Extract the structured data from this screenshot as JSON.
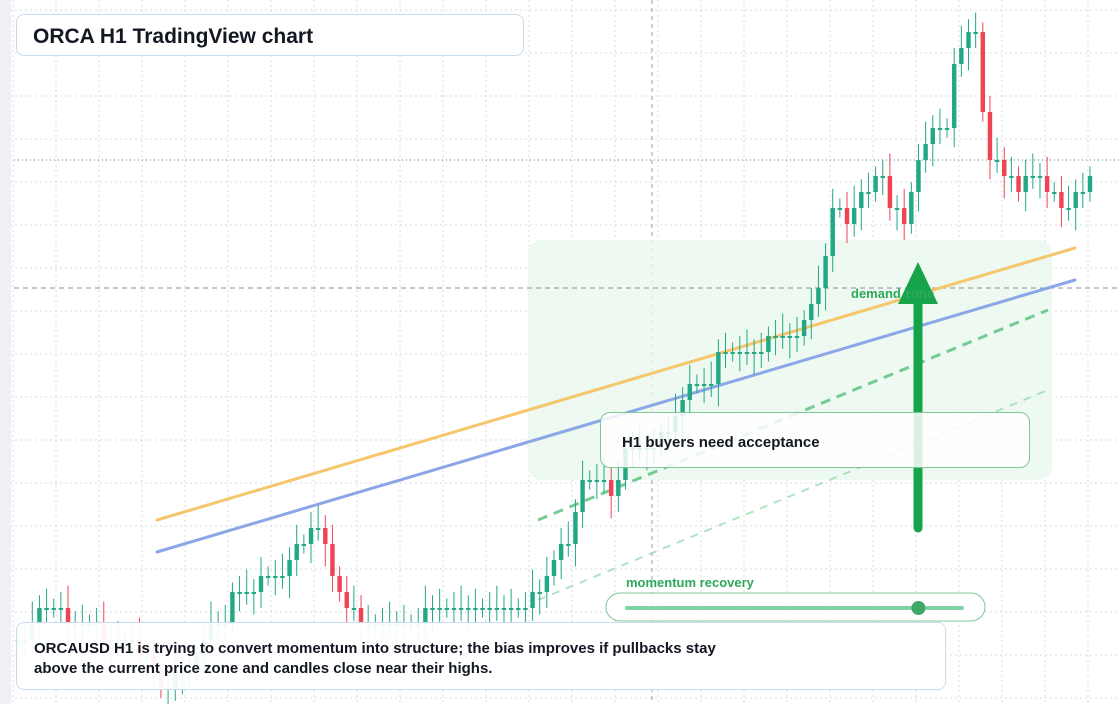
{
  "title": "ORCA H1 TradingView chart",
  "note": "H1 buyers need acceptance",
  "caption": {
    "line1": "ORCAUSD H1 is trying to convert momentum into structure; the bias improves if pullbacks stay",
    "line2": "above the current price zone and candles close near their highs."
  },
  "labels": {
    "demand": "demand zone",
    "momentum": "momentum recovery"
  },
  "momentum_slider": {
    "value": 0.87
  },
  "colors": {
    "up": "#22a884",
    "down": "#ef4453",
    "grid": "#d7dce2",
    "ma_fast": "#f5c66b",
    "ma_slow": "#8ba7e8",
    "accent_green": "#16a34a",
    "zone_fill": "#eaf8ee"
  },
  "chart_data": {
    "type": "candlestick",
    "symbol": "ORCAUSD",
    "timeframe": "H1",
    "close_values": [
      0.5,
      0.5,
      0.51,
      0.52,
      0.52,
      0.52,
      0.52,
      0.51,
      0.51,
      0.51,
      0.51,
      0.51,
      0.5,
      0.5,
      0.5,
      0.5,
      0.5,
      0.49,
      0.49,
      0.48,
      0.47,
      0.47,
      0.48,
      0.48,
      0.48,
      0.49,
      0.5,
      0.51,
      0.51,
      0.51,
      0.53,
      0.53,
      0.53,
      0.53,
      0.54,
      0.54,
      0.54,
      0.54,
      0.55,
      0.56,
      0.56,
      0.57,
      0.57,
      0.56,
      0.54,
      0.53,
      0.52,
      0.52,
      0.51,
      0.51,
      0.51,
      0.51,
      0.51,
      0.51,
      0.51,
      0.51,
      0.51,
      0.52,
      0.52,
      0.52,
      0.52,
      0.52,
      0.52,
      0.52,
      0.52,
      0.52,
      0.52,
      0.52,
      0.52,
      0.52,
      0.52,
      0.52,
      0.53,
      0.53,
      0.54,
      0.55,
      0.56,
      0.56,
      0.58,
      0.6,
      0.6,
      0.6,
      0.6,
      0.59,
      0.6,
      0.62,
      0.62,
      0.62,
      0.62,
      0.62,
      0.63,
      0.63,
      0.64,
      0.65,
      0.66,
      0.66,
      0.66,
      0.66,
      0.68,
      0.68,
      0.68,
      0.68,
      0.68,
      0.68,
      0.68,
      0.69,
      0.69,
      0.69,
      0.69,
      0.69,
      0.7,
      0.71,
      0.72,
      0.74,
      0.77,
      0.77,
      0.76,
      0.77,
      0.78,
      0.78,
      0.79,
      0.79,
      0.77,
      0.77,
      0.76,
      0.78,
      0.8,
      0.81,
      0.82,
      0.82,
      0.82,
      0.86,
      0.87,
      0.88,
      0.88,
      0.83,
      0.8,
      0.8,
      0.79,
      0.79,
      0.78,
      0.79,
      0.79,
      0.79,
      0.78,
      0.78,
      0.77,
      0.77,
      0.78,
      0.78,
      0.79
    ],
    "y_range": [
      0.46,
      0.9
    ],
    "moving_averages": [
      {
        "color": "#f5c66b",
        "values": [
          0.575,
          0.745
        ]
      },
      {
        "color": "#8ba7e8",
        "values": [
          0.555,
          0.725
        ]
      }
    ],
    "horizontal_levels": [
      0.8,
      0.72
    ],
    "demand_zone": {
      "price_range": [
        0.6,
        0.75
      ]
    },
    "grid": true
  }
}
